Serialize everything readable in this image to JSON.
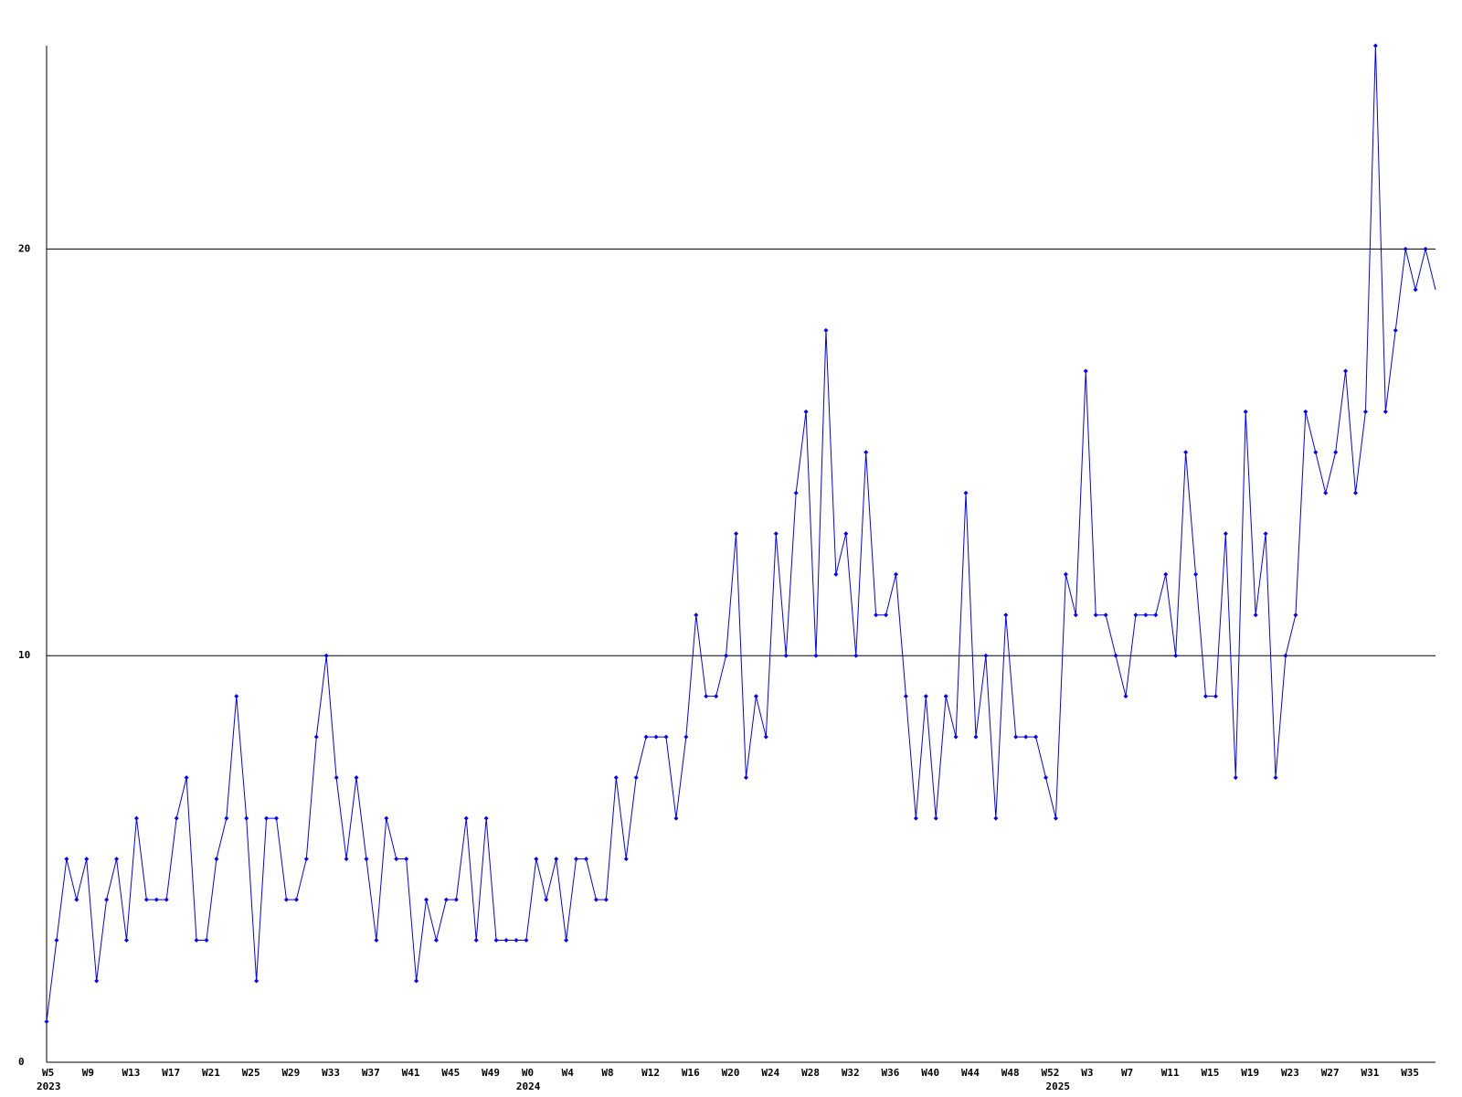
{
  "chart_data": {
    "type": "line",
    "categories": [
      "W5",
      null,
      null,
      null,
      "W9",
      null,
      null,
      null,
      "W13",
      null,
      null,
      null,
      "W17",
      null,
      null,
      null,
      "W21",
      null,
      null,
      null,
      "W25",
      null,
      null,
      null,
      "W29",
      null,
      null,
      null,
      "W33",
      null,
      null,
      null,
      "W37",
      null,
      null,
      null,
      "W41",
      null,
      null,
      null,
      "W45",
      null,
      null,
      null,
      "W49",
      null,
      null,
      null,
      "W0",
      null,
      null,
      null,
      "W4",
      null,
      null,
      null,
      "W8",
      null,
      null,
      null,
      "W12",
      null,
      null,
      null,
      "W16",
      null,
      null,
      null,
      "W20",
      null,
      null,
      null,
      "W24",
      null,
      null,
      null,
      "W28",
      null,
      null,
      null,
      "W32",
      null,
      null,
      null,
      "W36",
      null,
      null,
      null,
      "W40",
      null,
      null,
      null,
      "W44",
      null,
      null,
      null,
      "W48",
      null,
      null,
      null,
      "W52",
      null,
      null,
      null,
      "W3",
      null,
      null,
      null,
      "W7",
      null,
      null,
      null,
      "W11",
      null,
      null,
      null,
      "W15",
      null,
      null,
      null,
      "W19",
      null,
      null,
      null,
      "W23",
      null,
      null,
      null,
      "W27",
      null,
      null,
      null,
      "W31",
      null,
      null,
      null,
      "W35",
      null,
      null,
      null
    ],
    "years": [
      "2023",
      null,
      null,
      null,
      null,
      null,
      null,
      null,
      null,
      null,
      null,
      null,
      null,
      null,
      null,
      null,
      null,
      null,
      null,
      null,
      null,
      null,
      null,
      null,
      null,
      null,
      null,
      null,
      null,
      null,
      null,
      null,
      null,
      null,
      null,
      null,
      null,
      null,
      null,
      null,
      null,
      null,
      null,
      null,
      null,
      null,
      null,
      null,
      "2024",
      null,
      null,
      null,
      null,
      null,
      null,
      null,
      null,
      null,
      null,
      null,
      null,
      null,
      null,
      null,
      null,
      null,
      null,
      null,
      null,
      null,
      null,
      null,
      null,
      null,
      null,
      null,
      null,
      null,
      null,
      null,
      null,
      null,
      null,
      null,
      null,
      null,
      null,
      null,
      null,
      null,
      null,
      null,
      null,
      null,
      null,
      null,
      null,
      null,
      null,
      null,
      null,
      "2025",
      null,
      null,
      null,
      null,
      null,
      null,
      null,
      null,
      null,
      null,
      null,
      null,
      null,
      null,
      null,
      null,
      null,
      null,
      null,
      null,
      null,
      null,
      null,
      null,
      null,
      null,
      null,
      null,
      null,
      null,
      null,
      null,
      null,
      null,
      null,
      null,
      null,
      null
    ],
    "series": [
      {
        "color": "#0000ff",
        "values": [
          1,
          3,
          5,
          4,
          5,
          2,
          4,
          5,
          3,
          6,
          4,
          4,
          4,
          6,
          7,
          3,
          3,
          5,
          6,
          9,
          6,
          2,
          6,
          6,
          4,
          4,
          5,
          8,
          10,
          7,
          5,
          7,
          5,
          3,
          6,
          5,
          5,
          2,
          4,
          3,
          4,
          4,
          6,
          3,
          6,
          3,
          3,
          3,
          3,
          5,
          4,
          5,
          3,
          5,
          5,
          4,
          4,
          7,
          5,
          7,
          8,
          8,
          8,
          6,
          8,
          11,
          9,
          9,
          10,
          13,
          7,
          9,
          8,
          13,
          10,
          14,
          16,
          10,
          18,
          12,
          13,
          10,
          15,
          11,
          11,
          12,
          9,
          6,
          9,
          6,
          9,
          8,
          14,
          8,
          10,
          6,
          11,
          8,
          8,
          8,
          7,
          6,
          12,
          11,
          17,
          11,
          11,
          10,
          9,
          11,
          11,
          11,
          12,
          10,
          15,
          12,
          9,
          9,
          13,
          7,
          16,
          11,
          13,
          7,
          10,
          11,
          16,
          15,
          14,
          15,
          17,
          14,
          16,
          25,
          16,
          18,
          20,
          19,
          20,
          19
        ]
      }
    ],
    "ylim": [
      0,
      25
    ],
    "yticks": [
      0,
      10,
      20
    ],
    "grid": true
  }
}
